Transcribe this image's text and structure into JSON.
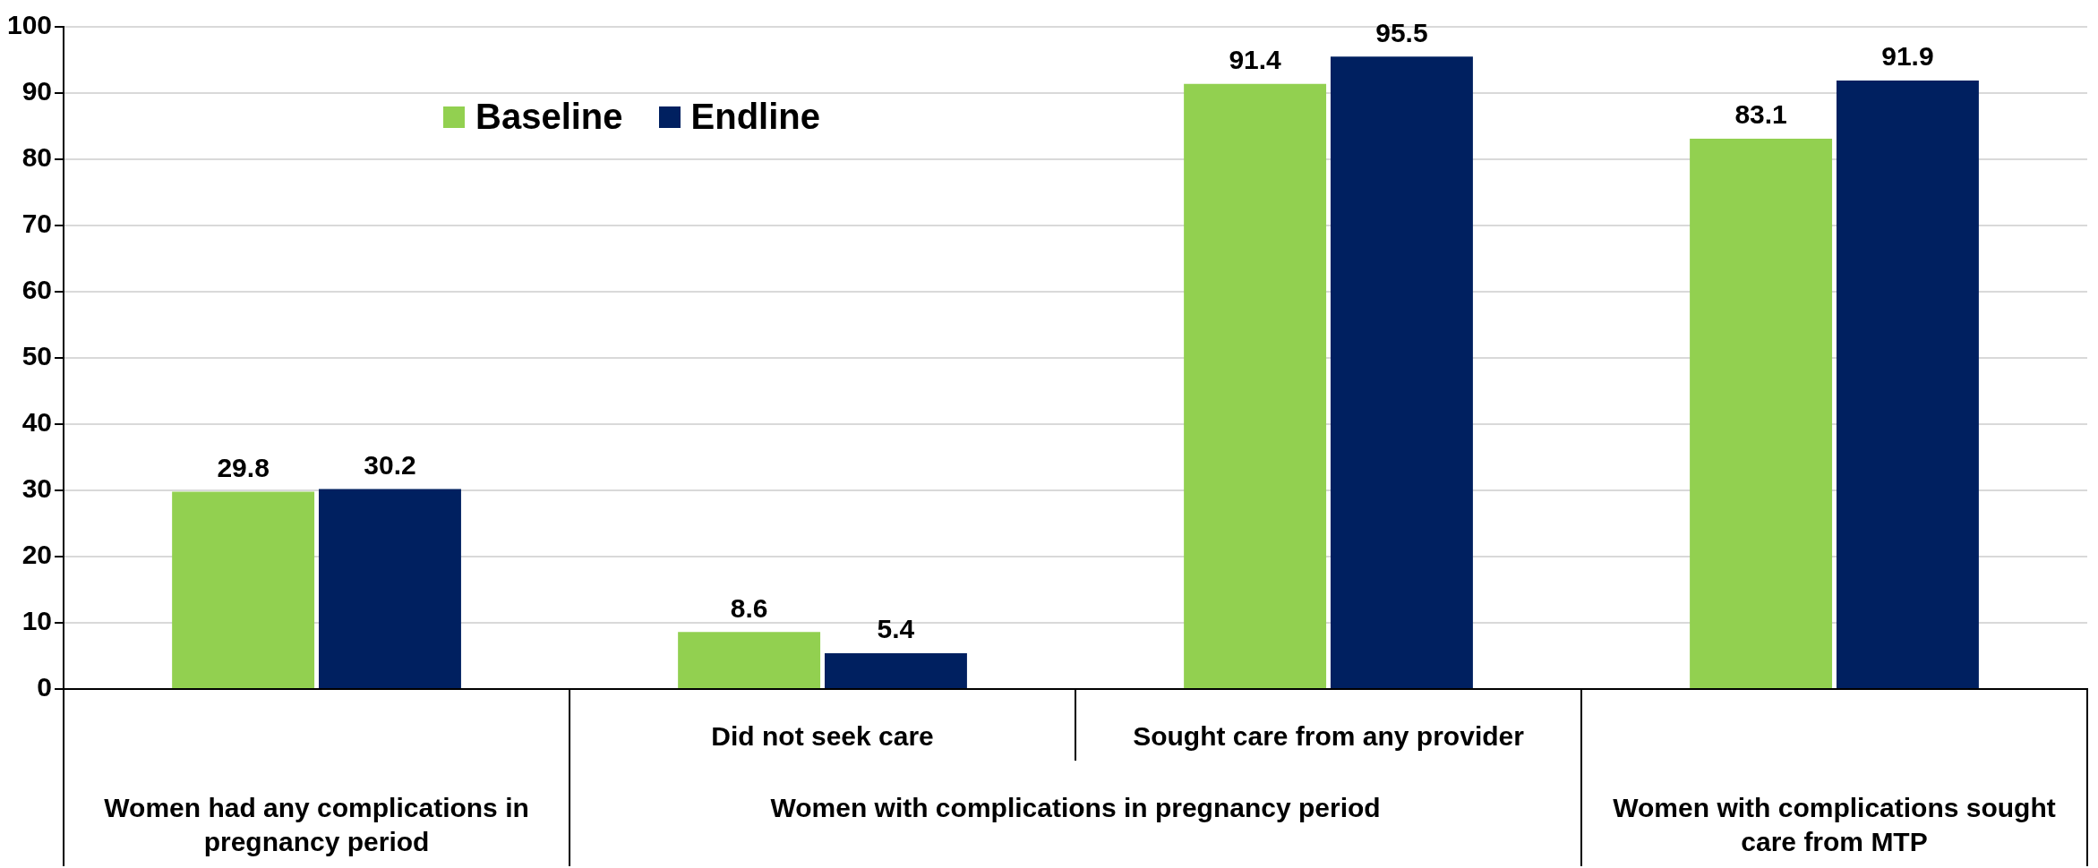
{
  "chart_data": {
    "type": "bar",
    "categories": [
      "Women had any complications in pregnancy period",
      "Did not seek care",
      "Sought care from any provider",
      "Women with complications sought care from MTP"
    ],
    "series": [
      {
        "name": "Baseline",
        "color": "#92d050",
        "values": [
          29.8,
          8.6,
          91.4,
          83.1
        ]
      },
      {
        "name": "Endline",
        "color": "#002060",
        "values": [
          30.2,
          5.4,
          95.5,
          91.9
        ]
      }
    ],
    "annotations": [
      "Women with complications in pregnancy period"
    ],
    "ylim": [
      0,
      100
    ],
    "yticks": [
      0,
      10,
      20,
      30,
      40,
      50,
      60,
      70,
      80,
      90,
      100
    ],
    "grid": "y",
    "legend": "top left",
    "data_labels": true
  }
}
